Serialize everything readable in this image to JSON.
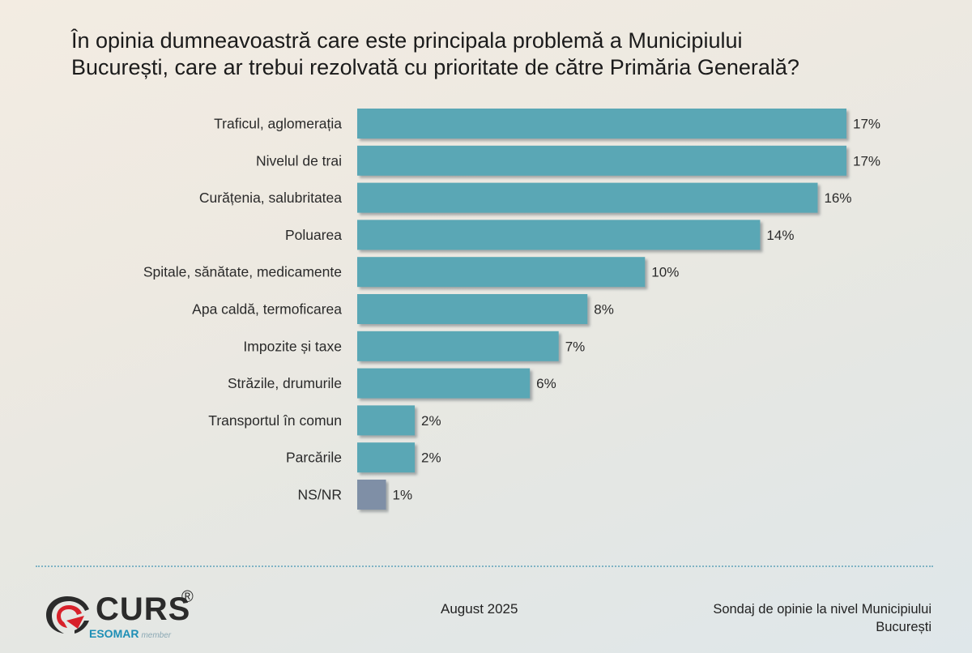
{
  "title": {
    "line1": "În opinia dumneavoastră care este principala problemă a Municipiului",
    "line2": "București, care ar trebui rezolvată cu prioritate de către Primăria Generală?"
  },
  "chart_data": {
    "type": "bar",
    "orientation": "horizontal",
    "title": "În opinia dumneavoastră care este principala problemă a Municipiului București, care ar trebui rezolvată cu prioritate de către Primăria Generală?",
    "categories": [
      "Traficul, aglomerația",
      "Nivelul de trai",
      "Curățenia, salubritatea",
      "Poluarea",
      "Spitale, sănătate, medicamente",
      "Apa caldă, termoficarea",
      "Impozite și taxe",
      "Străzile, drumurile",
      "Transportul în comun",
      "Parcările",
      "NS/NR"
    ],
    "values": [
      17,
      17,
      16,
      14,
      10,
      8,
      7,
      6,
      2,
      2,
      1
    ],
    "value_labels": [
      "17%",
      "17%",
      "16%",
      "14%",
      "10%",
      "8%",
      "7%",
      "6%",
      "2%",
      "2%",
      "1%"
    ],
    "unit": "%",
    "colors": {
      "bar": "#5aa7b5",
      "bar_nsnr": "#7f8fa6",
      "bar_shadow": "#8a8f94"
    },
    "xlim": [
      0,
      17
    ],
    "grid": false,
    "legend": "none"
  },
  "footer": {
    "logo": {
      "brand": "CURS",
      "registered": "®",
      "sub": "ESOMAR",
      "sub_note": "member"
    },
    "date": "August 2025",
    "source_line1": "Sondaj de opinie la nivel Municipiului",
    "source_line2": "București"
  }
}
